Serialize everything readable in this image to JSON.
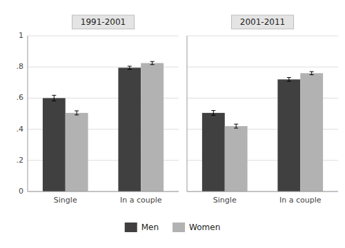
{
  "chart_data": [
    {
      "type": "bar",
      "title": "1991-2001",
      "categories": [
        "Single",
        "In a couple"
      ],
      "series": [
        {
          "name": "Men",
          "color": "#404040",
          "values": [
            0.6,
            0.795
          ],
          "errors": [
            0.018,
            0.01
          ]
        },
        {
          "name": "Women",
          "color": "#b2b2b2",
          "values": [
            0.505,
            0.825
          ],
          "errors": [
            0.013,
            0.01
          ]
        }
      ],
      "ylim": [
        0,
        1.0
      ],
      "yticks": [
        0,
        {
          "value": 0.2,
          "label": ".2"
        },
        {
          "value": 0.4,
          "label": ".4"
        },
        {
          "value": 0.6,
          "label": ".6"
        },
        {
          "value": 0.8,
          "label": ".8"
        },
        1
      ],
      "grid": true,
      "legend": "bottom"
    },
    {
      "type": "bar",
      "title": "2001-2011",
      "categories": [
        "Single",
        "In a couple"
      ],
      "series": [
        {
          "name": "Men",
          "color": "#404040",
          "values": [
            0.505,
            0.72
          ],
          "errors": [
            0.015,
            0.012
          ]
        },
        {
          "name": "Women",
          "color": "#b2b2b2",
          "values": [
            0.42,
            0.76
          ],
          "errors": [
            0.013,
            0.01
          ]
        }
      ],
      "ylim": [
        0,
        1.0
      ],
      "yticks": [
        0,
        0.2,
        0.4,
        0.6,
        0.8,
        1
      ],
      "grid": true,
      "tick_labels": "x"
    }
  ]
}
